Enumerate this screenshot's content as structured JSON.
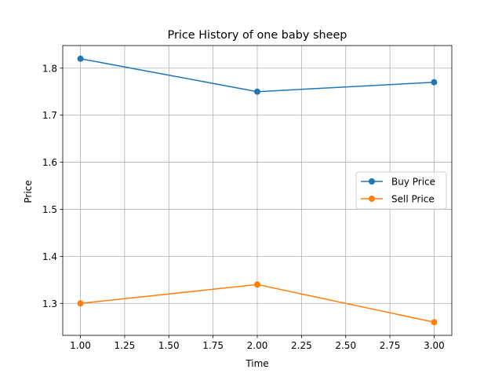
{
  "chart_data": {
    "type": "line",
    "title": "Price History of one baby sheep",
    "xlabel": "Time",
    "ylabel": "Price",
    "x": [
      1.0,
      2.0,
      3.0
    ],
    "xlim": [
      0.9,
      3.1
    ],
    "ylim": [
      1.232,
      1.848
    ],
    "xticks": [
      1.0,
      1.25,
      1.5,
      1.75,
      2.0,
      2.25,
      2.5,
      2.75,
      3.0
    ],
    "xtick_labels": [
      "1.00",
      "1.25",
      "1.50",
      "1.75",
      "2.00",
      "2.25",
      "2.50",
      "2.75",
      "3.00"
    ],
    "yticks": [
      1.3,
      1.4,
      1.5,
      1.6,
      1.7,
      1.8
    ],
    "ytick_labels": [
      "1.3",
      "1.4",
      "1.5",
      "1.6",
      "1.7",
      "1.8"
    ],
    "grid": true,
    "legend_position": "center-right",
    "series": [
      {
        "name": "Buy Price",
        "values": [
          1.82,
          1.75,
          1.77
        ],
        "color": "#1f77b4"
      },
      {
        "name": "Sell Price",
        "values": [
          1.3,
          1.34,
          1.26
        ],
        "color": "#ff7f0e"
      }
    ]
  }
}
